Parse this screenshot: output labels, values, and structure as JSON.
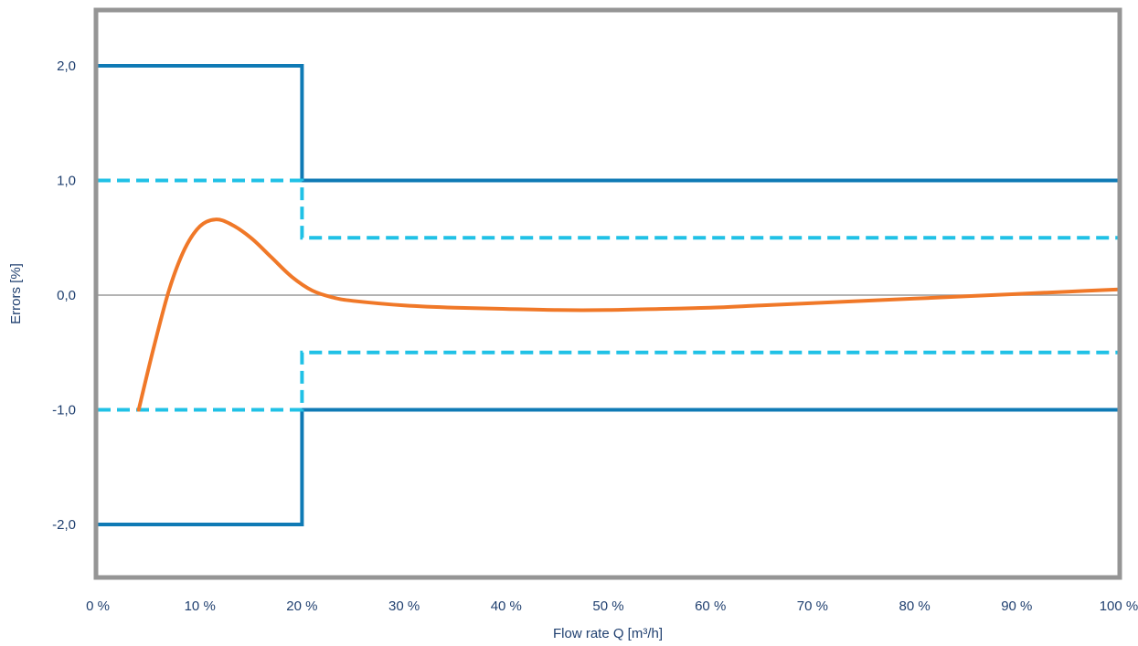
{
  "chart_data": {
    "type": "line",
    "title": "",
    "xlabel": "Flow rate Q [m³/h]",
    "ylabel": "Errors [%]",
    "xlim": [
      0,
      100
    ],
    "ylim": [
      -2.5,
      2.4
    ],
    "x_ticks": [
      0,
      10,
      20,
      30,
      40,
      50,
      60,
      70,
      80,
      90,
      100
    ],
    "x_tick_labels": [
      "0 %",
      "10 %",
      "20 %",
      "30 %",
      "40 %",
      "50 %",
      "60 %",
      "70 %",
      "80 %",
      "90 %",
      "100 %"
    ],
    "y_ticks": [
      2.0,
      1.0,
      0.0,
      -1.0,
      -2.0
    ],
    "y_tick_labels": [
      "2,0",
      "1,0",
      "0,0",
      "-1,0",
      "-2,0"
    ],
    "grid": false,
    "legend": "none",
    "colors": {
      "frame": "#959595",
      "zero_line": "#9a9a9a",
      "limit_solid": "#0f7ab5",
      "limit_dashed": "#20c1e6",
      "error_curve": "#f07828",
      "text": "#1f3f6f"
    },
    "series": [
      {
        "style": "solid",
        "color": "#0f7ab5",
        "points": [
          [
            0,
            2.0
          ],
          [
            20,
            2.0
          ],
          [
            20,
            1.0
          ],
          [
            100,
            1.0
          ]
        ]
      },
      {
        "style": "solid",
        "color": "#0f7ab5",
        "points": [
          [
            0,
            -2.0
          ],
          [
            20,
            -2.0
          ],
          [
            20,
            -1.0
          ],
          [
            100,
            -1.0
          ]
        ]
      },
      {
        "style": "dashed",
        "color": "#20c1e6",
        "points": [
          [
            0,
            1.0
          ],
          [
            20,
            1.0
          ],
          [
            20,
            0.5
          ],
          [
            100,
            0.5
          ]
        ]
      },
      {
        "style": "dashed",
        "color": "#20c1e6",
        "points": [
          [
            0,
            -1.0
          ],
          [
            20,
            -1.0
          ],
          [
            20,
            -0.5
          ],
          [
            100,
            -0.5
          ]
        ]
      },
      {
        "style": "curve",
        "color": "#f07828",
        "points": [
          [
            4,
            -1.0
          ],
          [
            5.5,
            -0.45
          ],
          [
            7,
            0.05
          ],
          [
            8.5,
            0.4
          ],
          [
            10,
            0.6
          ],
          [
            11.5,
            0.66
          ],
          [
            13,
            0.62
          ],
          [
            15,
            0.5
          ],
          [
            17,
            0.33
          ],
          [
            19,
            0.16
          ],
          [
            21,
            0.04
          ],
          [
            23,
            -0.02
          ],
          [
            25,
            -0.05
          ],
          [
            30,
            -0.09
          ],
          [
            35,
            -0.11
          ],
          [
            40,
            -0.12
          ],
          [
            45,
            -0.13
          ],
          [
            50,
            -0.13
          ],
          [
            55,
            -0.12
          ],
          [
            60,
            -0.11
          ],
          [
            65,
            -0.09
          ],
          [
            70,
            -0.07
          ],
          [
            75,
            -0.05
          ],
          [
            80,
            -0.03
          ],
          [
            85,
            -0.01
          ],
          [
            90,
            0.01
          ],
          [
            95,
            0.03
          ],
          [
            100,
            0.05
          ]
        ]
      }
    ]
  }
}
